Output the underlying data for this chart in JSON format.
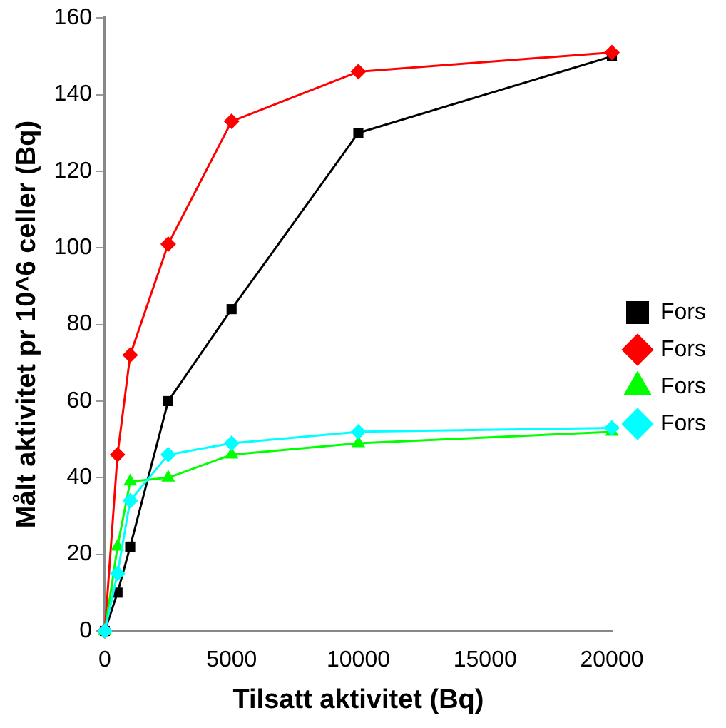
{
  "chart_data": {
    "type": "line",
    "xlabel": "Tilsatt aktivitet (Bq)",
    "ylabel": "Målt aktivitet pr 10^6 celler (Bq)",
    "x": [
      0,
      500,
      1000,
      2500,
      5000,
      10000,
      20000
    ],
    "xlim": [
      0,
      20000
    ],
    "xticks": [
      0,
      5000,
      10000,
      15000,
      20000
    ],
    "ylim": [
      0,
      160
    ],
    "yticks": [
      0,
      20,
      40,
      60,
      80,
      100,
      120,
      140,
      160
    ],
    "grid": false,
    "legend": "right",
    "line_style": "solid",
    "series": [
      {
        "name": "Fors",
        "color": "#000000",
        "marker": "square",
        "values": [
          0,
          10,
          22,
          60,
          84,
          130,
          150
        ]
      },
      {
        "name": "Fors",
        "color": "#ff0000",
        "marker": "diamond",
        "values": [
          0,
          46,
          72,
          101,
          133,
          146,
          151
        ]
      },
      {
        "name": "Fors",
        "color": "#00ff00",
        "marker": "triangle",
        "values": [
          0,
          22,
          39,
          40,
          46,
          49,
          52
        ]
      },
      {
        "name": "Fors",
        "color": "#00ffff",
        "marker": "diamond",
        "values": [
          0,
          15,
          34,
          46,
          49,
          52,
          53
        ]
      }
    ]
  }
}
